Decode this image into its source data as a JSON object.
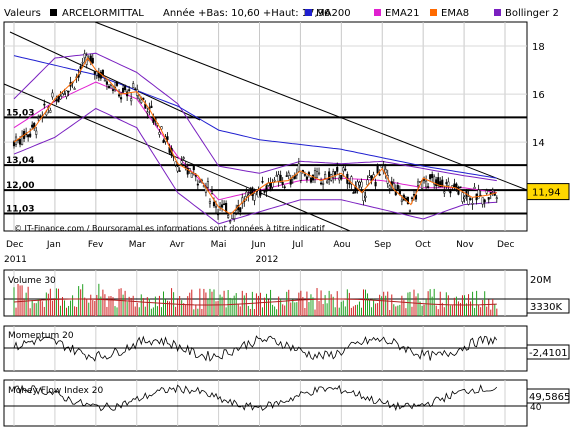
{
  "header": {
    "label": "Valeurs",
    "symbol": "ARCELORMITTAL",
    "range_text": "Année +Bas: 10,60 +Haut: 17,96",
    "legend": [
      {
        "name": "MA200",
        "color": "#2020d0"
      },
      {
        "name": "EMA21",
        "color": "#e020d0"
      },
      {
        "name": "EMA8",
        "color": "#ff6a00"
      },
      {
        "name": "Bollinger 2",
        "color": "#7a20c0"
      }
    ]
  },
  "watermark": "© IT-Finance.com / BoursoramaLes informations sont données à titre indicatif",
  "x_labels": [
    "Dec",
    "Jan",
    "Fev",
    "Mar",
    "Avr",
    "Mai",
    "Jun",
    "Jul",
    "Aou",
    "Sep",
    "Oct",
    "Nov",
    "Dec"
  ],
  "year_labels": [
    "2011",
    "2012"
  ],
  "chart_data": [
    {
      "type": "candlestick",
      "name": "price",
      "ylim": [
        10.3,
        19.0
      ],
      "y_ticks": [
        12,
        14,
        16,
        18
      ],
      "level_lines": [
        {
          "value": 15.03,
          "label": "15,03"
        },
        {
          "value": 13.04,
          "label": "13,04"
        },
        {
          "value": 12.0,
          "label": "12,00"
        },
        {
          "value": 11.03,
          "label": "11,03"
        }
      ],
      "last_price": {
        "value": 11.94,
        "label": "11,94"
      },
      "price_series": [
        {
          "x": 0,
          "y": 14.0
        },
        {
          "x": 0.5,
          "y": 14.6
        },
        {
          "x": 1.0,
          "y": 15.8
        },
        {
          "x": 1.5,
          "y": 16.6
        },
        {
          "x": 1.8,
          "y": 17.5
        },
        {
          "x": 2.0,
          "y": 17.0
        },
        {
          "x": 2.3,
          "y": 16.6
        },
        {
          "x": 2.6,
          "y": 16.0
        },
        {
          "x": 3.0,
          "y": 16.1
        },
        {
          "x": 3.3,
          "y": 15.4
        },
        {
          "x": 3.6,
          "y": 14.5
        },
        {
          "x": 4.0,
          "y": 13.1
        },
        {
          "x": 4.5,
          "y": 12.6
        },
        {
          "x": 5.0,
          "y": 11.3
        },
        {
          "x": 5.3,
          "y": 11.0
        },
        {
          "x": 5.7,
          "y": 11.7
        },
        {
          "x": 6.2,
          "y": 12.3
        },
        {
          "x": 6.7,
          "y": 12.4
        },
        {
          "x": 7.0,
          "y": 12.8
        },
        {
          "x": 7.5,
          "y": 12.4
        },
        {
          "x": 8.0,
          "y": 12.7
        },
        {
          "x": 8.5,
          "y": 11.9
        },
        {
          "x": 9.0,
          "y": 12.9
        },
        {
          "x": 9.3,
          "y": 12.0
        },
        {
          "x": 9.7,
          "y": 11.4
        },
        {
          "x": 10.0,
          "y": 12.5
        },
        {
          "x": 10.4,
          "y": 12.2
        },
        {
          "x": 10.8,
          "y": 12.1
        },
        {
          "x": 11.2,
          "y": 11.7
        },
        {
          "x": 11.6,
          "y": 11.8
        },
        {
          "x": 11.8,
          "y": 11.9
        }
      ],
      "ma200": [
        {
          "x": 0,
          "y": 17.6
        },
        {
          "x": 2,
          "y": 16.8
        },
        {
          "x": 4,
          "y": 15.5
        },
        {
          "x": 5,
          "y": 14.5
        },
        {
          "x": 6,
          "y": 14.1
        },
        {
          "x": 8,
          "y": 13.7
        },
        {
          "x": 10,
          "y": 13.0
        },
        {
          "x": 11.8,
          "y": 12.5
        }
      ],
      "ema21": [
        {
          "x": 0,
          "y": 14.6
        },
        {
          "x": 1,
          "y": 15.7
        },
        {
          "x": 2,
          "y": 16.5
        },
        {
          "x": 3,
          "y": 15.8
        },
        {
          "x": 4,
          "y": 13.4
        },
        {
          "x": 5,
          "y": 11.6
        },
        {
          "x": 6,
          "y": 12.0
        },
        {
          "x": 7,
          "y": 12.4
        },
        {
          "x": 8,
          "y": 12.5
        },
        {
          "x": 9,
          "y": 12.4
        },
        {
          "x": 10,
          "y": 12.1
        },
        {
          "x": 11,
          "y": 12.1
        },
        {
          "x": 11.8,
          "y": 11.9
        }
      ],
      "bollinger_upper": [
        {
          "x": 0,
          "y": 15.8
        },
        {
          "x": 1,
          "y": 17.5
        },
        {
          "x": 2,
          "y": 17.7
        },
        {
          "x": 3,
          "y": 16.9
        },
        {
          "x": 4,
          "y": 15.6
        },
        {
          "x": 5,
          "y": 13.0
        },
        {
          "x": 6,
          "y": 12.7
        },
        {
          "x": 7,
          "y": 13.2
        },
        {
          "x": 8,
          "y": 13.1
        },
        {
          "x": 9,
          "y": 13.2
        },
        {
          "x": 10,
          "y": 12.9
        },
        {
          "x": 11,
          "y": 12.6
        },
        {
          "x": 11.8,
          "y": 12.4
        }
      ],
      "bollinger_lower": [
        {
          "x": 0,
          "y": 13.5
        },
        {
          "x": 1,
          "y": 14.2
        },
        {
          "x": 2,
          "y": 15.4
        },
        {
          "x": 3,
          "y": 14.6
        },
        {
          "x": 4,
          "y": 11.9
        },
        {
          "x": 5,
          "y": 10.6
        },
        {
          "x": 6,
          "y": 11.1
        },
        {
          "x": 7,
          "y": 11.6
        },
        {
          "x": 8,
          "y": 11.6
        },
        {
          "x": 9,
          "y": 11.2
        },
        {
          "x": 10,
          "y": 10.8
        },
        {
          "x": 11,
          "y": 11.4
        },
        {
          "x": 11.8,
          "y": 11.5
        }
      ]
    },
    {
      "type": "bar",
      "name": "Volume 30",
      "title": "Volume 30",
      "y_label_top": "20M",
      "last_value": "3330K",
      "ylim": [
        0,
        20
      ],
      "y_unit": "M"
    },
    {
      "type": "line",
      "name": "Momentum 20",
      "title": "Momentum 20",
      "y_ticks": [
        0
      ],
      "last_value": "-2,4101",
      "ylim": [
        -4,
        4
      ]
    },
    {
      "type": "line",
      "name": "Money Flow Index 20",
      "title": "Money Flow Index 20",
      "y_ticks": [
        40
      ],
      "last_value": "49,5865",
      "ylim": [
        20,
        80
      ]
    }
  ]
}
